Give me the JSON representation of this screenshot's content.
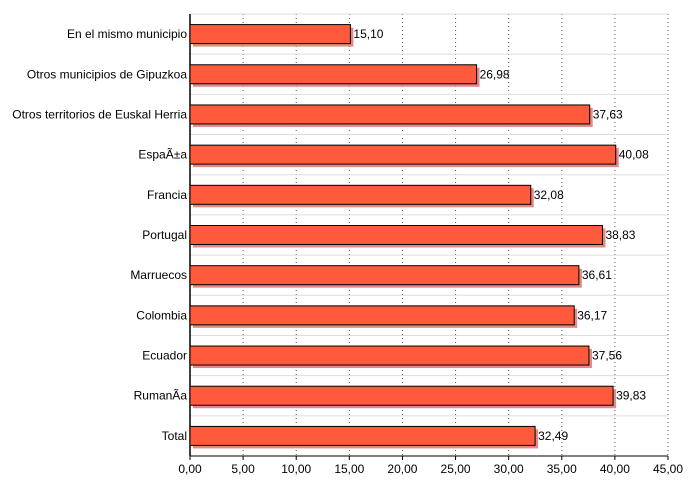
{
  "chart_data": {
    "type": "bar",
    "orientation": "horizontal",
    "categories": [
      "En el mismo municipio",
      "Otros municipios de Gipuzkoa",
      "Otros territorios de Euskal Herria",
      "EspaÃ±a",
      "Francia",
      "Portugal",
      "Marruecos",
      "Colombia",
      "Ecuador",
      "RumanÃ­a",
      "Total"
    ],
    "values": [
      15.1,
      26.98,
      37.63,
      40.08,
      32.08,
      38.83,
      36.61,
      36.17,
      37.56,
      39.83,
      32.49
    ],
    "value_labels": [
      "15,10",
      "26,98",
      "37,63",
      "40,08",
      "32,08",
      "38,83",
      "36,61",
      "36,17",
      "37,56",
      "39,83",
      "32,49"
    ],
    "x_ticks": [
      0,
      5,
      10,
      15,
      20,
      25,
      30,
      35,
      40,
      45
    ],
    "x_tick_labels": [
      "0,00",
      "5,00",
      "10,00",
      "15,00",
      "20,00",
      "25,00",
      "30,00",
      "35,00",
      "40,00",
      "45,00"
    ],
    "xlim": [
      0,
      45
    ],
    "title": "",
    "xlabel": "",
    "ylabel": "",
    "grid": "vertical dotted",
    "legend": "none",
    "bar_color": "#ff5a3c",
    "bar_edge_color": "#000000",
    "shadow_color": "#e08a8a"
  }
}
